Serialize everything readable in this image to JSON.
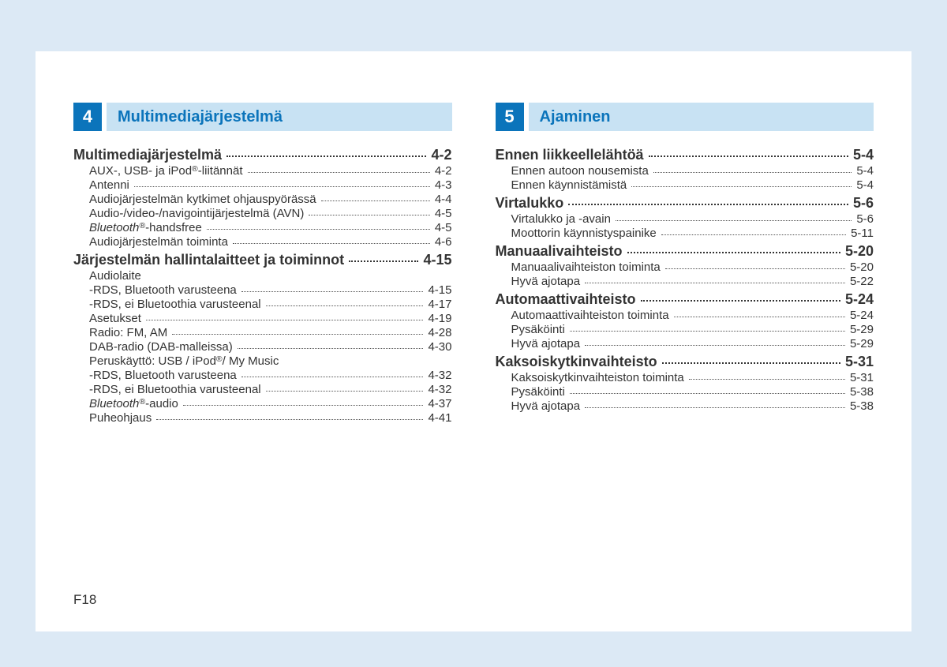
{
  "footer": "F18",
  "columns": [
    {
      "number": "4",
      "title": "Multimediajärjestelmä",
      "entries": [
        {
          "level": 1,
          "label": "Multimediajärjestelmä",
          "page": "4-2"
        },
        {
          "level": 2,
          "label": "AUX-, USB- ja iPod®-liitännät",
          "page": "4-2",
          "reg_after": "iPod"
        },
        {
          "level": 2,
          "label": "Antenni",
          "page": "4-3"
        },
        {
          "level": 2,
          "label": "Audiojärjestelmän kytkimet ohjauspyörässä",
          "page": "4-4"
        },
        {
          "level": 2,
          "label": "Audio-/video-/navigointijärjestelmä (AVN)",
          "page": "4-5"
        },
        {
          "level": 2,
          "label": "Bluetooth®-handsfree",
          "page": "4-5",
          "italic_prefix": "Bluetooth",
          "reg_after": "Bluetooth"
        },
        {
          "level": 2,
          "label": "Audiojärjestelmän toiminta",
          "page": "4-6"
        },
        {
          "level": 1,
          "label": "Järjestelmän hallintalaitteet ja toiminnot",
          "page": "4-15"
        },
        {
          "level": 2,
          "label": "Audiolaite",
          "nopage": true
        },
        {
          "level": 2,
          "label": "-RDS, Bluetooth varusteena",
          "page": "4-15"
        },
        {
          "level": 2,
          "label": "-RDS, ei Bluetoothia varusteenal",
          "page": "4-17"
        },
        {
          "level": 2,
          "label": "Asetukset",
          "page": "4-19"
        },
        {
          "level": 2,
          "label": "Radio: FM, AM",
          "page": "4-28"
        },
        {
          "level": 2,
          "label": "DAB-radio (DAB-malleissa)",
          "page": "4-30"
        },
        {
          "level": 2,
          "label": "Peruskäyttö: USB / iPod®/ My Music",
          "nopage": true,
          "reg_after": "iPod"
        },
        {
          "level": 2,
          "label": "-RDS, Bluetooth varusteena",
          "page": "4-32"
        },
        {
          "level": 2,
          "label": "-RDS, ei Bluetoothia varusteenal",
          "page": "4-32"
        },
        {
          "level": 2,
          "label": "Bluetooth®-audio",
          "page": "4-37",
          "italic_prefix": "Bluetooth",
          "reg_after": "Bluetooth"
        },
        {
          "level": 2,
          "label": "Puheohjaus",
          "page": "4-41"
        }
      ]
    },
    {
      "number": "5",
      "title": "Ajaminen",
      "entries": [
        {
          "level": 1,
          "label": "Ennen liikkeellelähtöä",
          "page": "5-4"
        },
        {
          "level": 2,
          "label": "Ennen autoon nousemista",
          "page": "5-4"
        },
        {
          "level": 2,
          "label": "Ennen käynnistämistä",
          "page": "5-4"
        },
        {
          "level": 1,
          "label": "Virtalukko",
          "page": "5-6"
        },
        {
          "level": 2,
          "label": "Virtalukko ja -avain",
          "page": "5-6"
        },
        {
          "level": 2,
          "label": "Moottorin käynnistyspainike",
          "page": "5-11"
        },
        {
          "level": 1,
          "label": "Manuaalivaihteisto",
          "page": "5-20"
        },
        {
          "level": 2,
          "label": "Manuaalivaihteiston toiminta",
          "page": "5-20"
        },
        {
          "level": 2,
          "label": "Hyvä ajotapa",
          "page": "5-22"
        },
        {
          "level": 1,
          "label": "Automaattivaihteisto",
          "page": "5-24"
        },
        {
          "level": 2,
          "label": "Automaattivaihteiston toiminta",
          "page": "5-24"
        },
        {
          "level": 2,
          "label": "Pysäköinti",
          "page": "5-29"
        },
        {
          "level": 2,
          "label": "Hyvä ajotapa",
          "page": "5-29"
        },
        {
          "level": 1,
          "label": "Kaksoiskytkinvaihteisto",
          "page": "5-31"
        },
        {
          "level": 2,
          "label": "Kaksoiskytkinvaihteiston toiminta",
          "page": "5-31"
        },
        {
          "level": 2,
          "label": "Pysäköinti",
          "page": "5-38"
        },
        {
          "level": 2,
          "label": "Hyvä ajotapa",
          "page": "5-38"
        }
      ]
    }
  ]
}
